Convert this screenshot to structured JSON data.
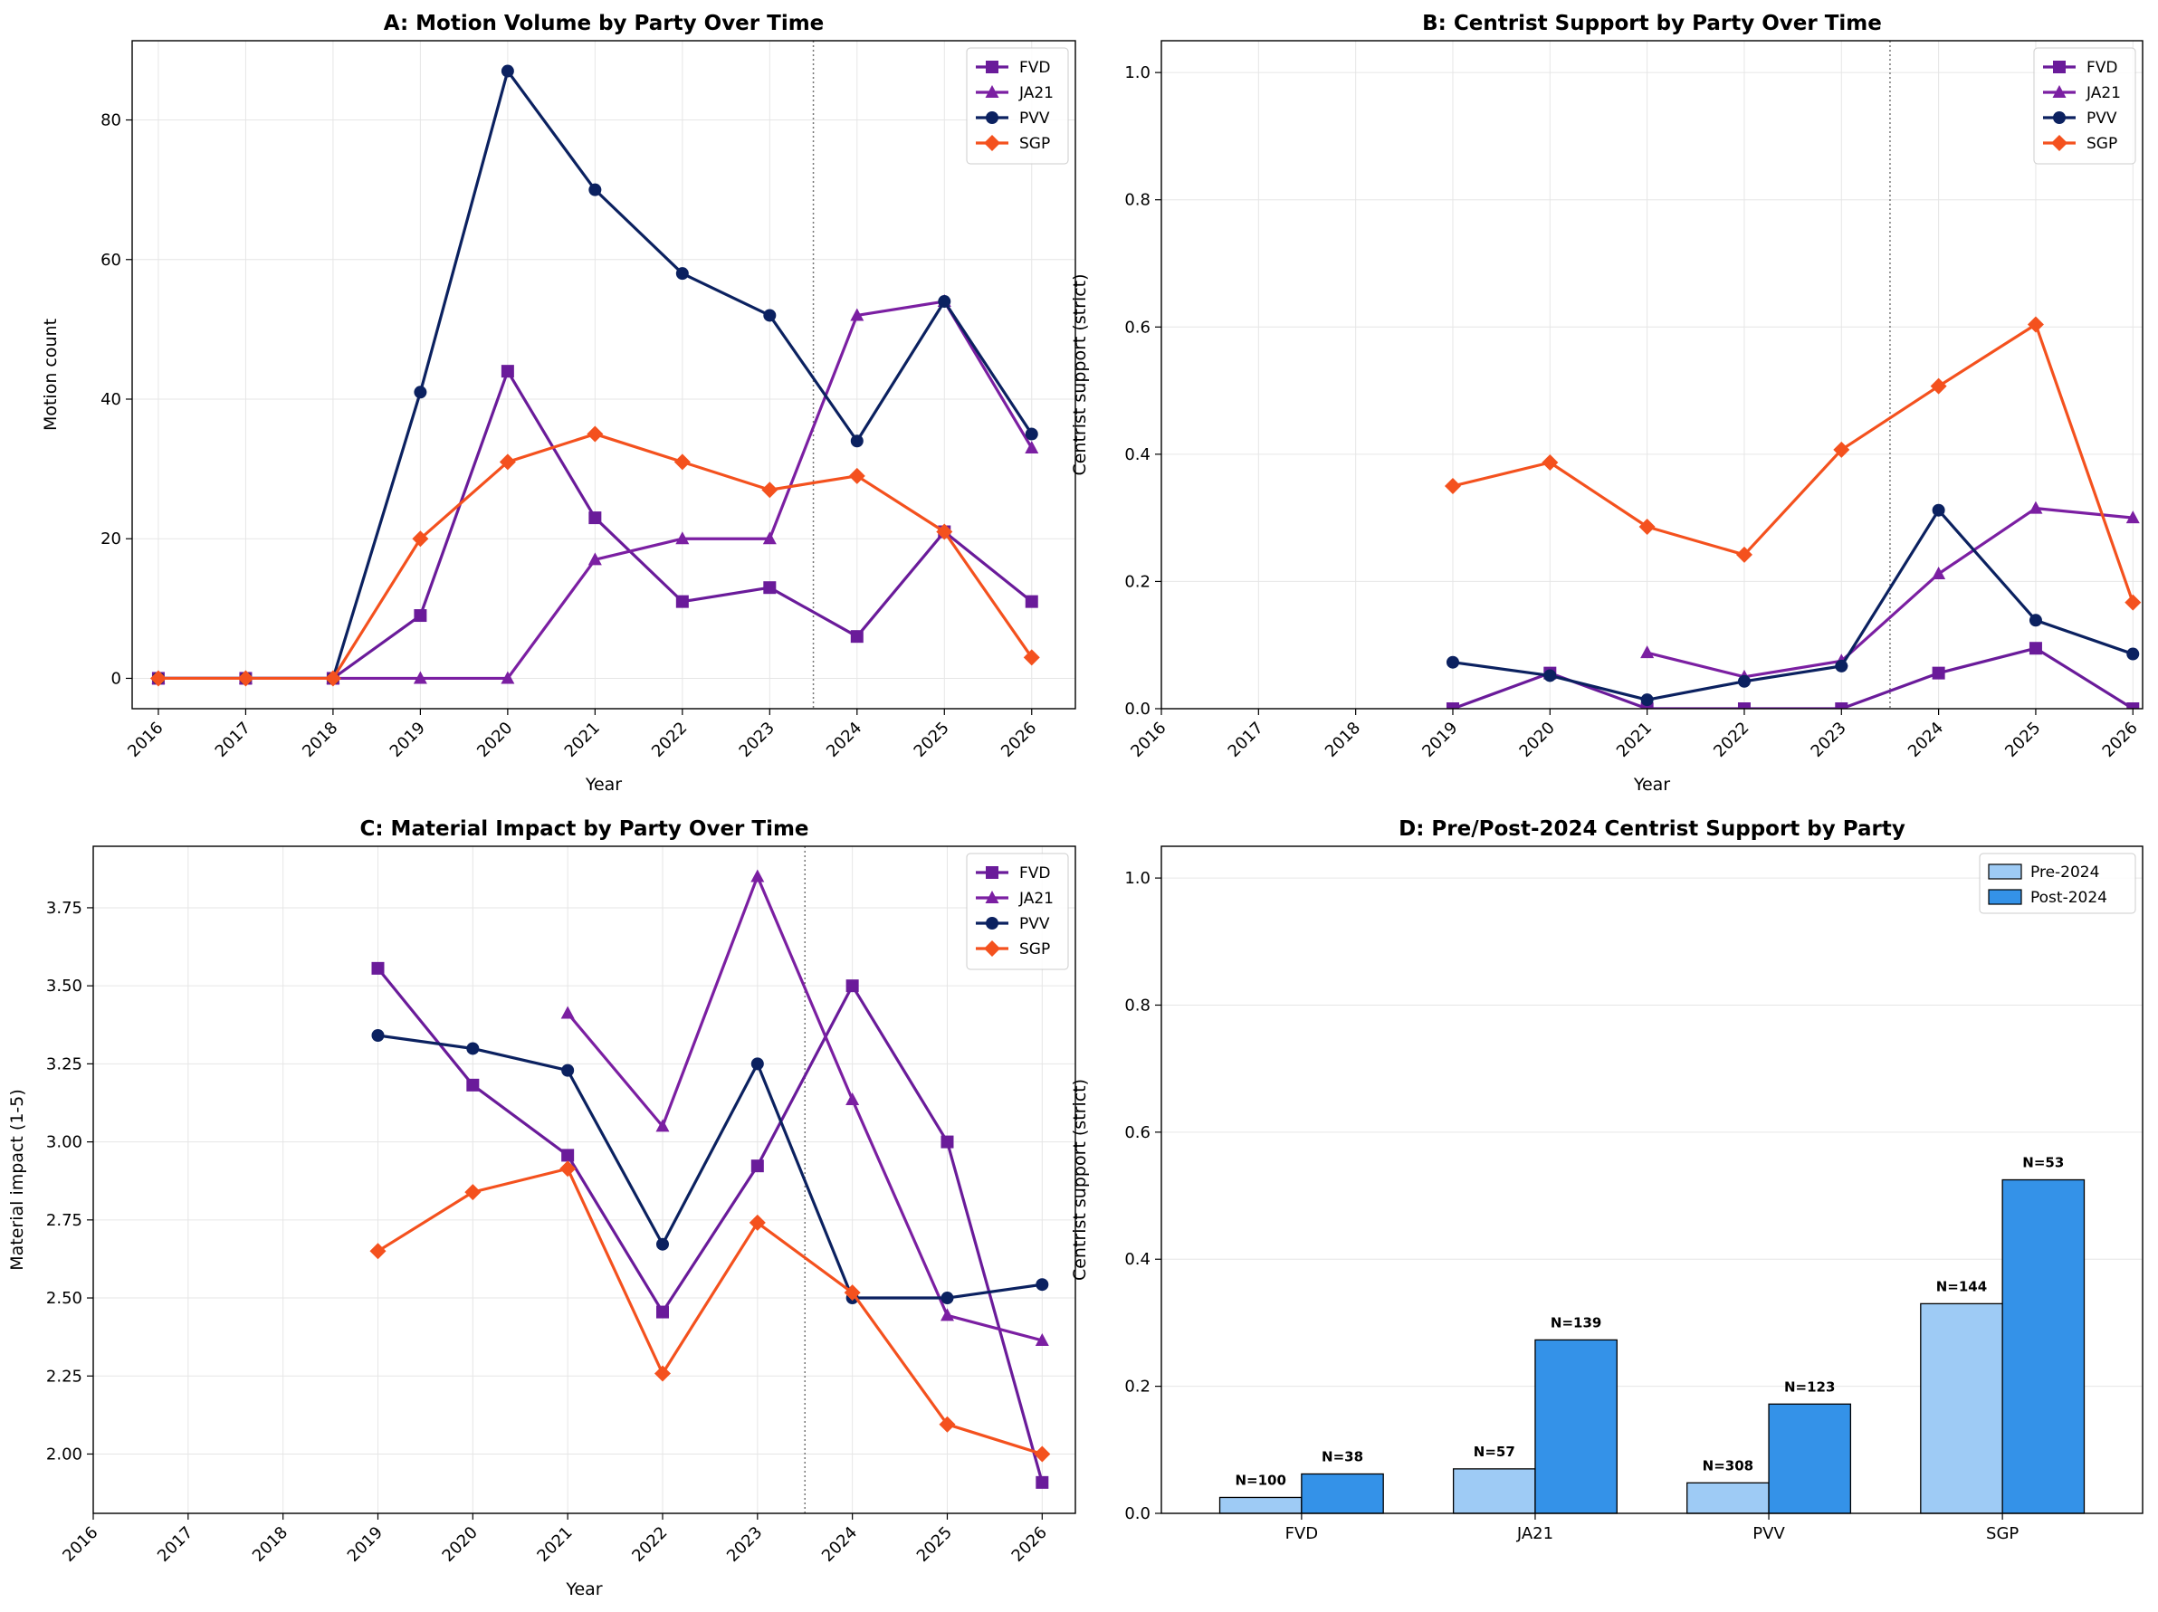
{
  "colors": {
    "FVD": "#6a1b9a",
    "JA21": "#7b1fa2",
    "PVV": "#0b2160",
    "SGP": "#f4511e",
    "pre": "#9ecbf5",
    "post": "#3492e8",
    "grid": "#e6e6e6"
  },
  "chart_data": [
    {
      "id": "A",
      "type": "line",
      "title": "A: Motion Volume by Party Over Time",
      "xlabel": "Year",
      "ylabel": "Motion count",
      "x": [
        2016,
        2017,
        2018,
        2019,
        2020,
        2021,
        2022,
        2023,
        2024,
        2025,
        2026
      ],
      "xlim": [
        2015.7,
        2026.5
      ],
      "ylim": [
        -4.35,
        91.35
      ],
      "yticks": [
        0,
        20,
        40,
        60,
        80
      ],
      "yticklabels": [
        "0",
        "20",
        "40",
        "60",
        "80"
      ],
      "vline": 2023.5,
      "grid": true,
      "legend": "top-right",
      "series": [
        {
          "name": "FVD",
          "marker": "square",
          "values": [
            0,
            0,
            0,
            9,
            44,
            23,
            11,
            13,
            6,
            21,
            11
          ]
        },
        {
          "name": "JA21",
          "marker": "triangle",
          "values": [
            0,
            0,
            0,
            0,
            0,
            17,
            20,
            20,
            52,
            54,
            33
          ]
        },
        {
          "name": "PVV",
          "marker": "circle",
          "values": [
            0,
            0,
            0,
            41,
            87,
            70,
            58,
            52,
            34,
            54,
            35
          ]
        },
        {
          "name": "SGP",
          "marker": "diamond",
          "values": [
            0,
            0,
            0,
            20,
            31,
            35,
            31,
            27,
            29,
            21,
            3
          ]
        }
      ]
    },
    {
      "id": "B",
      "type": "line",
      "title": "B: Centrist Support by Party Over Time",
      "xlabel": "Year",
      "ylabel": "Centrist support (strict)",
      "x": [
        2016,
        2017,
        2018,
        2019,
        2020,
        2021,
        2022,
        2023,
        2024,
        2025,
        2026
      ],
      "xlim": [
        2016,
        2026.1
      ],
      "ylim": [
        0,
        1.05
      ],
      "yticks": [
        0,
        0.2,
        0.4,
        0.6,
        0.8,
        1.0
      ],
      "yticklabels": [
        "0.0",
        "0.2",
        "0.4",
        "0.6",
        "0.8",
        "1.0"
      ],
      "vline": 2023.5,
      "grid": true,
      "legend": "top-right",
      "series": [
        {
          "name": "FVD",
          "marker": "square",
          "values": [
            null,
            null,
            null,
            0.0,
            0.056,
            0.0,
            0.0,
            0.0,
            0.056,
            0.095,
            0.0
          ]
        },
        {
          "name": "JA21",
          "marker": "triangle",
          "values": [
            null,
            null,
            null,
            null,
            null,
            0.088,
            0.05,
            0.075,
            0.212,
            0.315,
            0.3
          ]
        },
        {
          "name": "PVV",
          "marker": "circle",
          "values": [
            null,
            null,
            null,
            0.073,
            0.052,
            0.014,
            0.043,
            0.067,
            0.312,
            0.139,
            0.086
          ]
        },
        {
          "name": "SGP",
          "marker": "diamond",
          "values": [
            null,
            null,
            null,
            0.35,
            0.387,
            0.286,
            0.242,
            0.407,
            0.507,
            0.604,
            0.167
          ]
        }
      ]
    },
    {
      "id": "C",
      "type": "line",
      "title": "C: Material Impact by Party Over Time",
      "xlabel": "Year",
      "ylabel": "Material impact (1-5)",
      "x": [
        2016,
        2017,
        2018,
        2019,
        2020,
        2021,
        2022,
        2023,
        2024,
        2025,
        2026
      ],
      "xlim": [
        2016,
        2026.35
      ],
      "ylim": [
        1.81,
        3.947
      ],
      "yticks": [
        2.0,
        2.25,
        2.5,
        2.75,
        3.0,
        3.25,
        3.5,
        3.75
      ],
      "yticklabels": [
        "2.00",
        "2.25",
        "2.50",
        "2.75",
        "3.00",
        "3.25",
        "3.50",
        "3.75"
      ],
      "vline": 2023.5,
      "grid": true,
      "legend": "top-right",
      "series": [
        {
          "name": "FVD",
          "marker": "square",
          "values": [
            null,
            null,
            null,
            3.556,
            3.182,
            2.957,
            2.455,
            2.923,
            3.5,
            3.0,
            1.909
          ]
        },
        {
          "name": "JA21",
          "marker": "triangle",
          "values": [
            null,
            null,
            null,
            null,
            null,
            3.412,
            3.05,
            3.85,
            3.135,
            2.444,
            2.364
          ]
        },
        {
          "name": "PVV",
          "marker": "circle",
          "values": [
            null,
            null,
            null,
            3.341,
            3.299,
            3.229,
            2.672,
            3.25,
            2.5,
            2.5,
            2.543
          ]
        },
        {
          "name": "SGP",
          "marker": "diamond",
          "values": [
            null,
            null,
            null,
            2.65,
            2.839,
            2.914,
            2.258,
            2.741,
            2.517,
            2.095,
            2.0
          ]
        }
      ]
    },
    {
      "id": "D",
      "type": "bar",
      "title": "D: Pre/Post-2024 Centrist Support by Party",
      "xlabel": "",
      "ylabel": "Centrist support (strict)",
      "categories": [
        "FVD",
        "JA21",
        "PVV",
        "SGP"
      ],
      "ylim": [
        0,
        1.05
      ],
      "yticks": [
        0,
        0.2,
        0.4,
        0.6,
        0.8,
        1.0
      ],
      "yticklabels": [
        "0.0",
        "0.2",
        "0.4",
        "0.6",
        "0.8",
        "1.0"
      ],
      "grid": true,
      "legend": "top-right",
      "series": [
        {
          "name": "Pre-2024",
          "values": [
            0.025,
            0.07,
            0.048,
            0.33
          ],
          "labels": [
            "N=100",
            "N=57",
            "N=308",
            "N=144"
          ]
        },
        {
          "name": "Post-2024",
          "values": [
            0.062,
            0.273,
            0.172,
            0.525
          ],
          "labels": [
            "N=38",
            "N=139",
            "N=123",
            "N=53"
          ]
        }
      ]
    }
  ]
}
